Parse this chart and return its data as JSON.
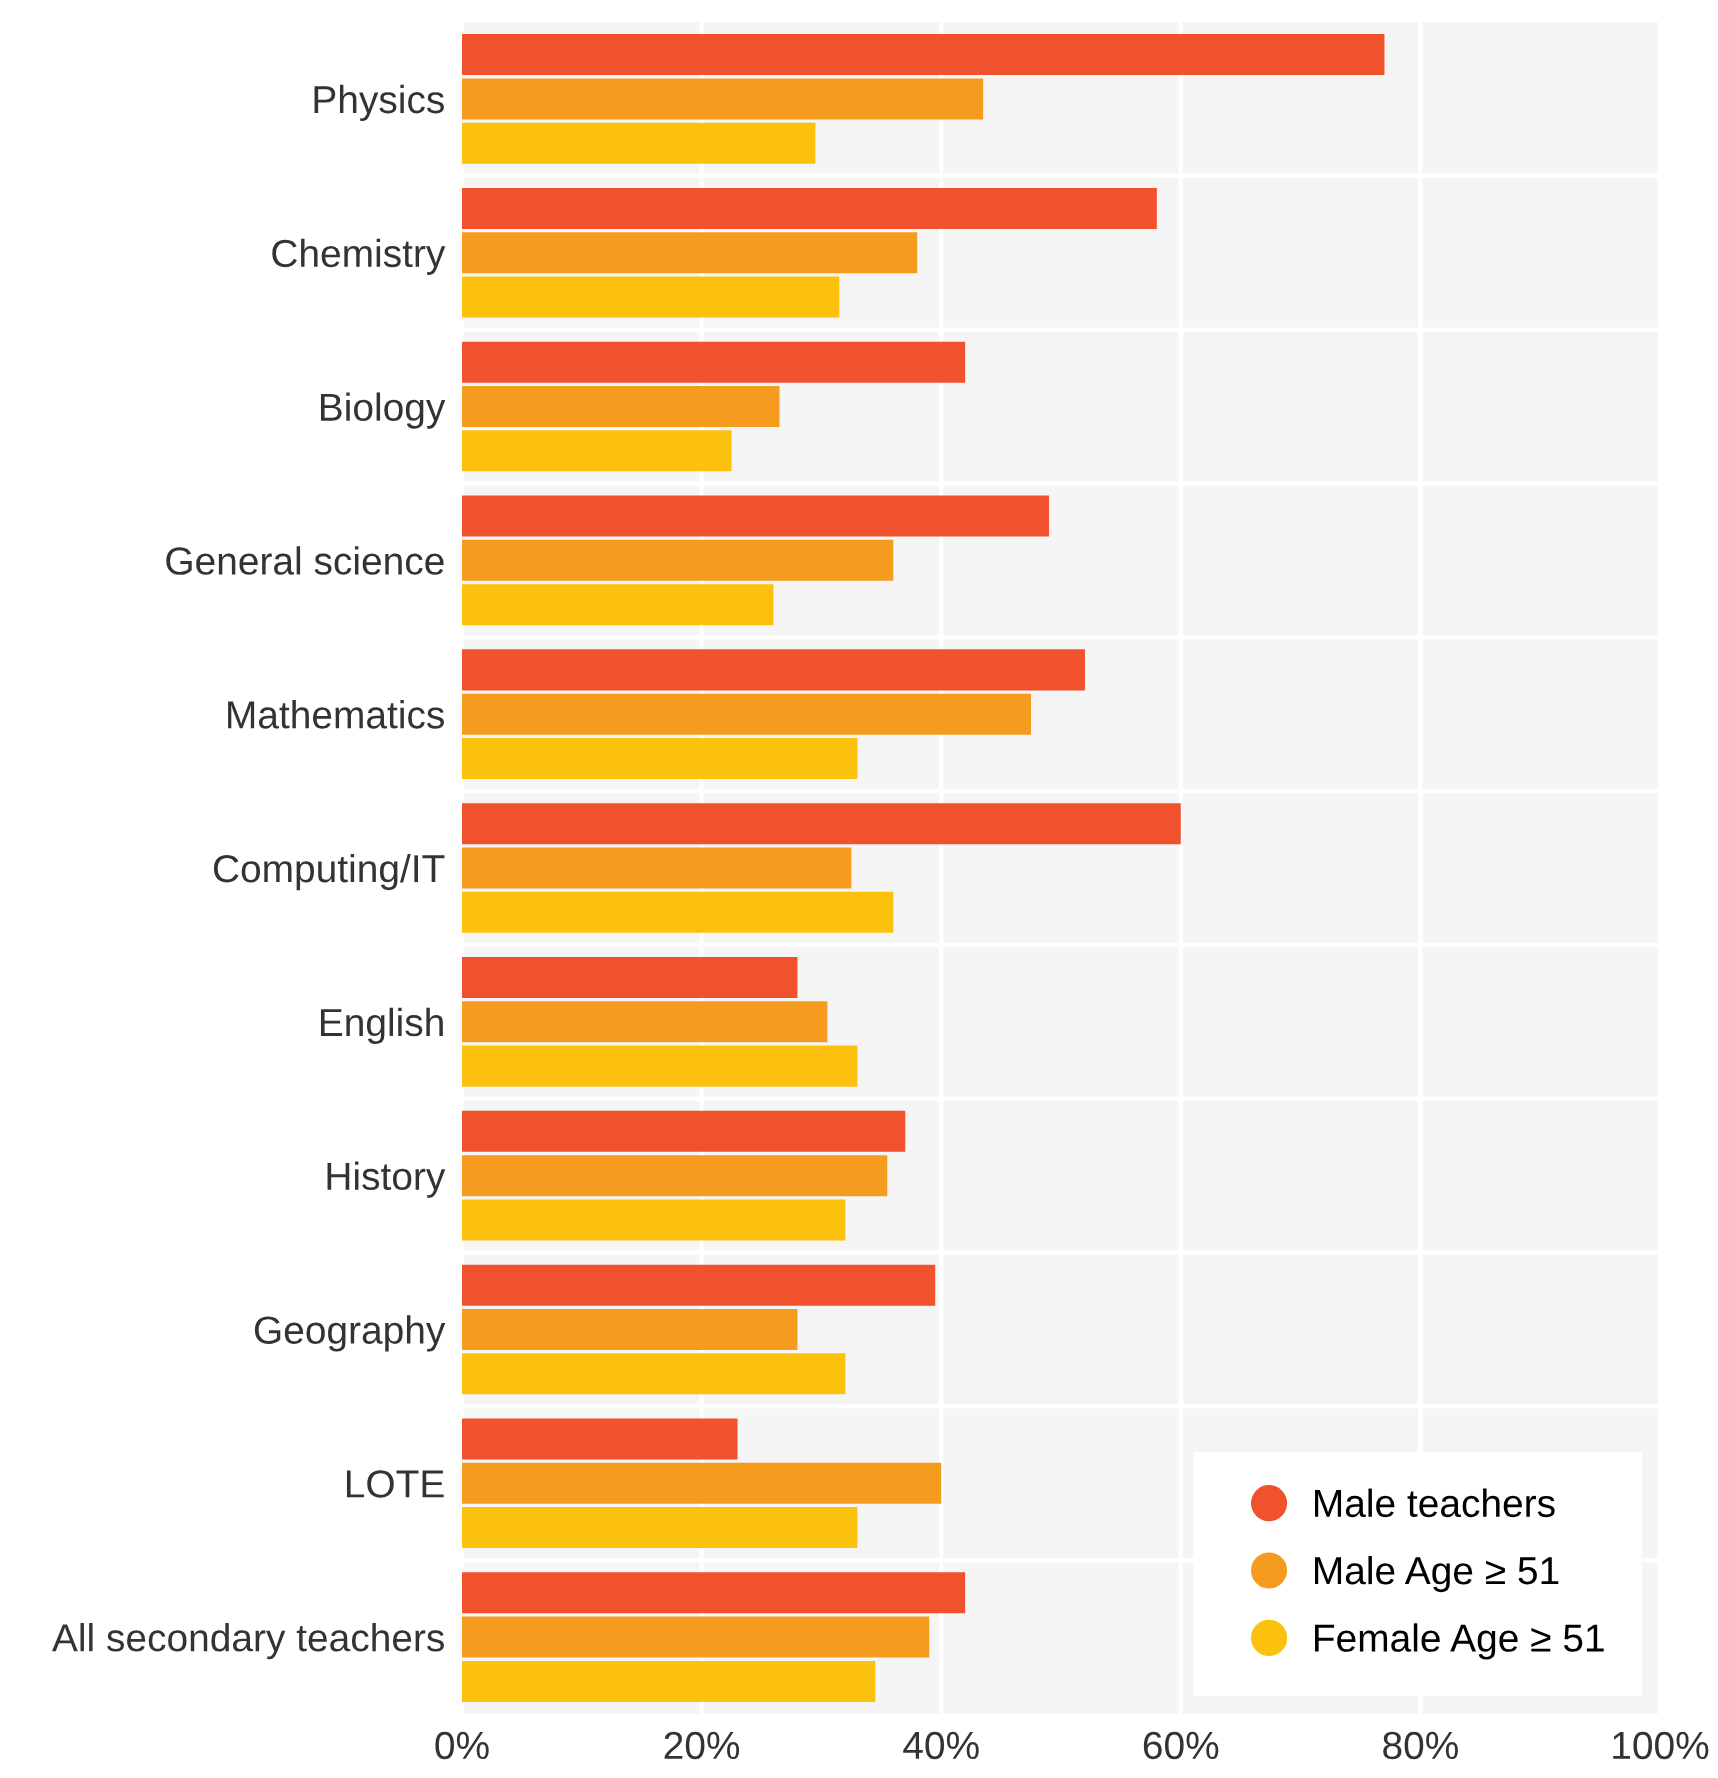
{
  "chart_data": {
    "type": "bar",
    "orientation": "horizontal",
    "categories": [
      "Physics",
      "Chemistry",
      "Biology",
      "General science",
      "Mathematics",
      "Computing/IT",
      "English",
      "History",
      "Geography",
      "LOTE",
      "All secondary teachers"
    ],
    "series": [
      {
        "name": "Male teachers",
        "color": "#f0522d",
        "values": [
          77,
          58,
          42,
          49,
          52,
          60,
          28,
          37,
          39.5,
          23,
          42
        ]
      },
      {
        "name": "Male Age ≥ 51",
        "color": "#f59c1f",
        "values": [
          43.5,
          38,
          26.5,
          36,
          47.5,
          32.5,
          30.5,
          35.5,
          28,
          40,
          39
        ]
      },
      {
        "name": "Female Age ≥ 51",
        "color": "#fcc10f",
        "values": [
          29.5,
          31.5,
          22.5,
          26,
          33,
          36,
          33,
          32,
          32,
          33,
          34.5
        ]
      }
    ],
    "xlim": [
      0,
      100
    ],
    "xticks": [
      {
        "value": 0,
        "label": "0%"
      },
      {
        "value": 20,
        "label": "20%"
      },
      {
        "value": 40,
        "label": "40%"
      },
      {
        "value": 60,
        "label": "60%"
      },
      {
        "value": 80,
        "label": "80%"
      },
      {
        "value": 100,
        "label": "100%"
      }
    ],
    "grid": "x",
    "legend": "bottom right",
    "marker": "circle"
  }
}
